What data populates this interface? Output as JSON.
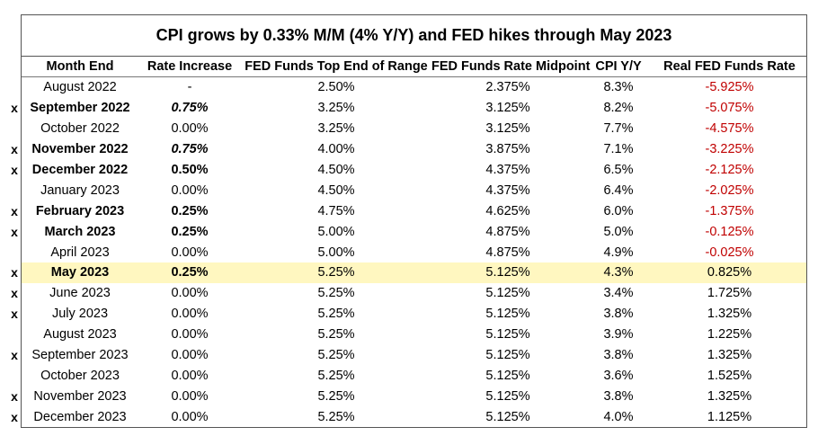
{
  "chart_data": {
    "type": "table",
    "title": "CPI grows by 0.33% M/M (4% Y/Y) and FED hikes through May 2023",
    "columns": [
      "Month End",
      "Rate Increase",
      "FED Funds Top End of Range",
      "FED Funds Rate Midpoint",
      "CPI Y/Y",
      "Real FED Funds Rate"
    ],
    "rows": [
      {
        "mark": "",
        "month": "August 2022",
        "rate": "-",
        "top": "2.50%",
        "mid": "2.375%",
        "cpi": "8.3%",
        "real": "-5.925%",
        "bold": false,
        "italic_rate": false,
        "highlight": false
      },
      {
        "mark": "x",
        "month": "September 2022",
        "rate": "0.75%",
        "top": "3.25%",
        "mid": "3.125%",
        "cpi": "8.2%",
        "real": "-5.075%",
        "bold": true,
        "italic_rate": true,
        "highlight": false
      },
      {
        "mark": "",
        "month": "October 2022",
        "rate": "0.00%",
        "top": "3.25%",
        "mid": "3.125%",
        "cpi": "7.7%",
        "real": "-4.575%",
        "bold": false,
        "italic_rate": false,
        "highlight": false
      },
      {
        "mark": "x",
        "month": "November 2022",
        "rate": "0.75%",
        "top": "4.00%",
        "mid": "3.875%",
        "cpi": "7.1%",
        "real": "-3.225%",
        "bold": true,
        "italic_rate": true,
        "highlight": false
      },
      {
        "mark": "x",
        "month": "December 2022",
        "rate": "0.50%",
        "top": "4.50%",
        "mid": "4.375%",
        "cpi": "6.5%",
        "real": "-2.125%",
        "bold": true,
        "italic_rate": false,
        "highlight": false
      },
      {
        "mark": "",
        "month": "January 2023",
        "rate": "0.00%",
        "top": "4.50%",
        "mid": "4.375%",
        "cpi": "6.4%",
        "real": "-2.025%",
        "bold": false,
        "italic_rate": false,
        "highlight": false
      },
      {
        "mark": "x",
        "month": "February 2023",
        "rate": "0.25%",
        "top": "4.75%",
        "mid": "4.625%",
        "cpi": "6.0%",
        "real": "-1.375%",
        "bold": true,
        "italic_rate": false,
        "highlight": false
      },
      {
        "mark": "x",
        "month": "March 2023",
        "rate": "0.25%",
        "top": "5.00%",
        "mid": "4.875%",
        "cpi": "5.0%",
        "real": "-0.125%",
        "bold": true,
        "italic_rate": false,
        "highlight": false
      },
      {
        "mark": "",
        "month": "April 2023",
        "rate": "0.00%",
        "top": "5.00%",
        "mid": "4.875%",
        "cpi": "4.9%",
        "real": "-0.025%",
        "bold": false,
        "italic_rate": false,
        "highlight": false
      },
      {
        "mark": "x",
        "month": "May 2023",
        "rate": "0.25%",
        "top": "5.25%",
        "mid": "5.125%",
        "cpi": "4.3%",
        "real": "0.825%",
        "bold": true,
        "italic_rate": false,
        "highlight": true
      },
      {
        "mark": "x",
        "month": "June 2023",
        "rate": "0.00%",
        "top": "5.25%",
        "mid": "5.125%",
        "cpi": "3.4%",
        "real": "1.725%",
        "bold": false,
        "italic_rate": false,
        "highlight": false
      },
      {
        "mark": "x",
        "month": "July 2023",
        "rate": "0.00%",
        "top": "5.25%",
        "mid": "5.125%",
        "cpi": "3.8%",
        "real": "1.325%",
        "bold": false,
        "italic_rate": false,
        "highlight": false
      },
      {
        "mark": "",
        "month": "August 2023",
        "rate": "0.00%",
        "top": "5.25%",
        "mid": "5.125%",
        "cpi": "3.9%",
        "real": "1.225%",
        "bold": false,
        "italic_rate": false,
        "highlight": false
      },
      {
        "mark": "x",
        "month": "September 2023",
        "rate": "0.00%",
        "top": "5.25%",
        "mid": "5.125%",
        "cpi": "3.8%",
        "real": "1.325%",
        "bold": false,
        "italic_rate": false,
        "highlight": false
      },
      {
        "mark": "",
        "month": "October 2023",
        "rate": "0.00%",
        "top": "5.25%",
        "mid": "5.125%",
        "cpi": "3.6%",
        "real": "1.525%",
        "bold": false,
        "italic_rate": false,
        "highlight": false
      },
      {
        "mark": "x",
        "month": "November 2023",
        "rate": "0.00%",
        "top": "5.25%",
        "mid": "5.125%",
        "cpi": "3.8%",
        "real": "1.325%",
        "bold": false,
        "italic_rate": false,
        "highlight": false
      },
      {
        "mark": "x",
        "month": "December 2023",
        "rate": "0.00%",
        "top": "5.25%",
        "mid": "5.125%",
        "cpi": "4.0%",
        "real": "1.125%",
        "bold": false,
        "italic_rate": false,
        "highlight": false
      }
    ]
  },
  "colors": {
    "negative": "#c00000",
    "highlight": "#fff7c0",
    "border": "#555555"
  }
}
